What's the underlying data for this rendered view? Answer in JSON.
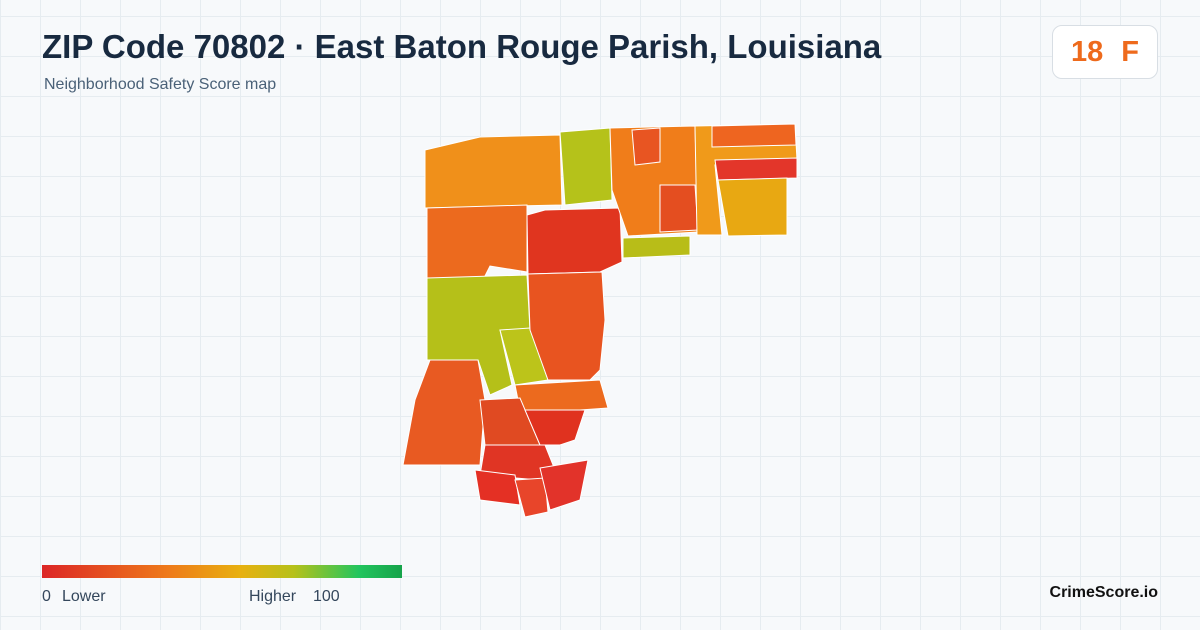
{
  "header": {
    "title": "ZIP Code 70802 · East Baton Rouge Parish, Louisiana",
    "subtitle": "Neighborhood Safety Score map"
  },
  "score": {
    "value": "18",
    "grade": "F"
  },
  "legend": {
    "min": "0",
    "min_label": "Lower",
    "max_label": "Higher",
    "max": "100"
  },
  "brand": "CrimeScore.io"
}
